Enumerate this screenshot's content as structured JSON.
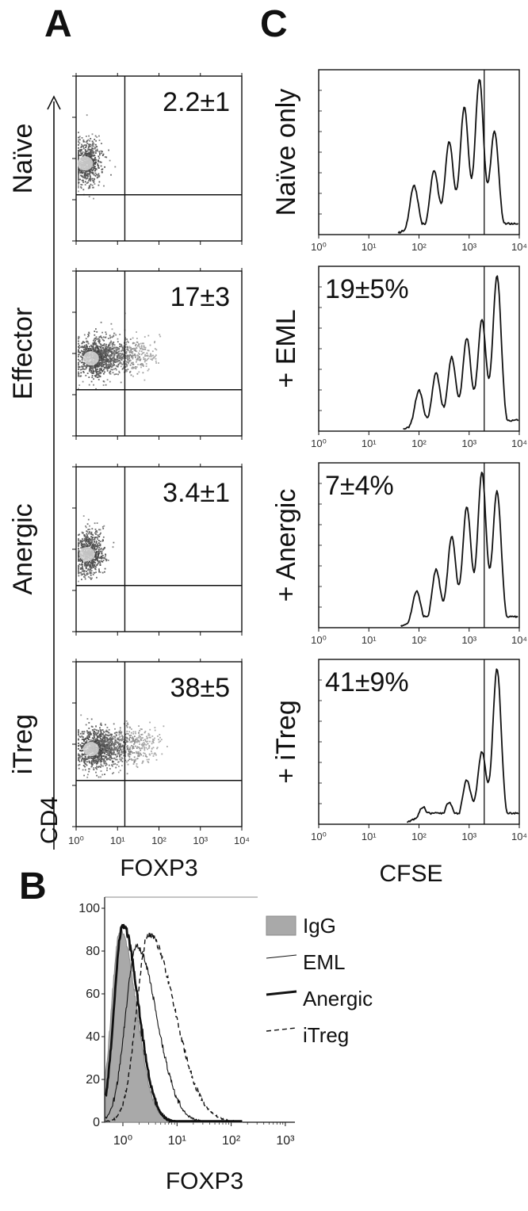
{
  "panel_labels": {
    "a": "A",
    "b": "B",
    "c": "C"
  },
  "chart_data": [
    {
      "panel": "A",
      "type": "scatter",
      "title": "",
      "xlabel": "FOXP3",
      "ylabel": "CD4",
      "x_scale": "log",
      "xlim": [
        1,
        10000
      ],
      "x_ticks": [
        "10⁰",
        "10¹",
        "10²",
        "10³",
        "10⁴"
      ],
      "gate_x": 15,
      "plots": [
        {
          "row_label": "Naïve",
          "quadrant_value": "2.2±1",
          "cloud": {
            "x_center": 1.8,
            "x_extent": 4,
            "density": "tight"
          }
        },
        {
          "row_label": "Effector",
          "quadrant_value": "17±3",
          "cloud": {
            "x_center": 2.5,
            "x_extent": 120,
            "density": "spread"
          }
        },
        {
          "row_label": "Anergic",
          "quadrant_value": "3.4±1",
          "cloud": {
            "x_center": 2.0,
            "x_extent": 14,
            "density": "tight"
          }
        },
        {
          "row_label": "iTreg",
          "quadrant_value": "38±5",
          "cloud": {
            "x_center": 2.5,
            "x_extent": 160,
            "density": "spread"
          }
        }
      ]
    },
    {
      "panel": "C",
      "type": "line",
      "title": "",
      "xlabel": "CFSE",
      "x_scale": "log",
      "xlim": [
        1,
        10000
      ],
      "x_ticks": [
        "10⁰",
        "10¹",
        "10²",
        "10³",
        "10⁴"
      ],
      "gate_x": 2000,
      "plots": [
        {
          "row_label": "Naïve only",
          "suppression": "",
          "peaks": [
            {
              "x": 80,
              "h": 0.3
            },
            {
              "x": 200,
              "h": 0.4
            },
            {
              "x": 400,
              "h": 0.58
            },
            {
              "x": 800,
              "h": 0.8
            },
            {
              "x": 1600,
              "h": 0.98
            },
            {
              "x": 3200,
              "h": 0.65
            }
          ]
        },
        {
          "row_label": "+ EML",
          "suppression": "19±5%",
          "peaks": [
            {
              "x": 100,
              "h": 0.25
            },
            {
              "x": 220,
              "h": 0.36
            },
            {
              "x": 450,
              "h": 0.46
            },
            {
              "x": 900,
              "h": 0.58
            },
            {
              "x": 1800,
              "h": 0.7
            },
            {
              "x": 3600,
              "h": 0.98
            }
          ]
        },
        {
          "row_label": "+ Anergic",
          "suppression": "7±4%",
          "peaks": [
            {
              "x": 90,
              "h": 0.22
            },
            {
              "x": 220,
              "h": 0.36
            },
            {
              "x": 450,
              "h": 0.57
            },
            {
              "x": 900,
              "h": 0.76
            },
            {
              "x": 1800,
              "h": 0.98
            },
            {
              "x": 3600,
              "h": 0.86
            }
          ]
        },
        {
          "row_label": "+ iTreg",
          "suppression": "41±9%",
          "peaks": [
            {
              "x": 120,
              "h": 0.1
            },
            {
              "x": 400,
              "h": 0.13
            },
            {
              "x": 900,
              "h": 0.27
            },
            {
              "x": 1800,
              "h": 0.45
            },
            {
              "x": 3600,
              "h": 0.98
            }
          ]
        }
      ]
    },
    {
      "panel": "B",
      "type": "line",
      "title": "",
      "xlabel": "FOXP3",
      "x_scale": "log",
      "xlim": [
        0.3,
        1000
      ],
      "ylim": [
        0,
        100
      ],
      "y_ticks": [
        0,
        20,
        40,
        60,
        80,
        100
      ],
      "x_ticks": [
        "10⁰",
        "10¹",
        "10²",
        "10³"
      ],
      "series": [
        {
          "name": "IgG",
          "style": "filled",
          "peak_x": 0.9,
          "peak_y": 90,
          "spread": 0.33
        },
        {
          "name": "EML",
          "style": "thin",
          "peak_x": 1.8,
          "peak_y": 82,
          "spread": 0.42
        },
        {
          "name": "Anergic",
          "style": "thick",
          "peak_x": 1.0,
          "peak_y": 92,
          "spread": 0.32
        },
        {
          "name": "iTreg",
          "style": "dashed",
          "peak_x": 3.0,
          "peak_y": 88,
          "spread": 0.45
        }
      ]
    }
  ]
}
